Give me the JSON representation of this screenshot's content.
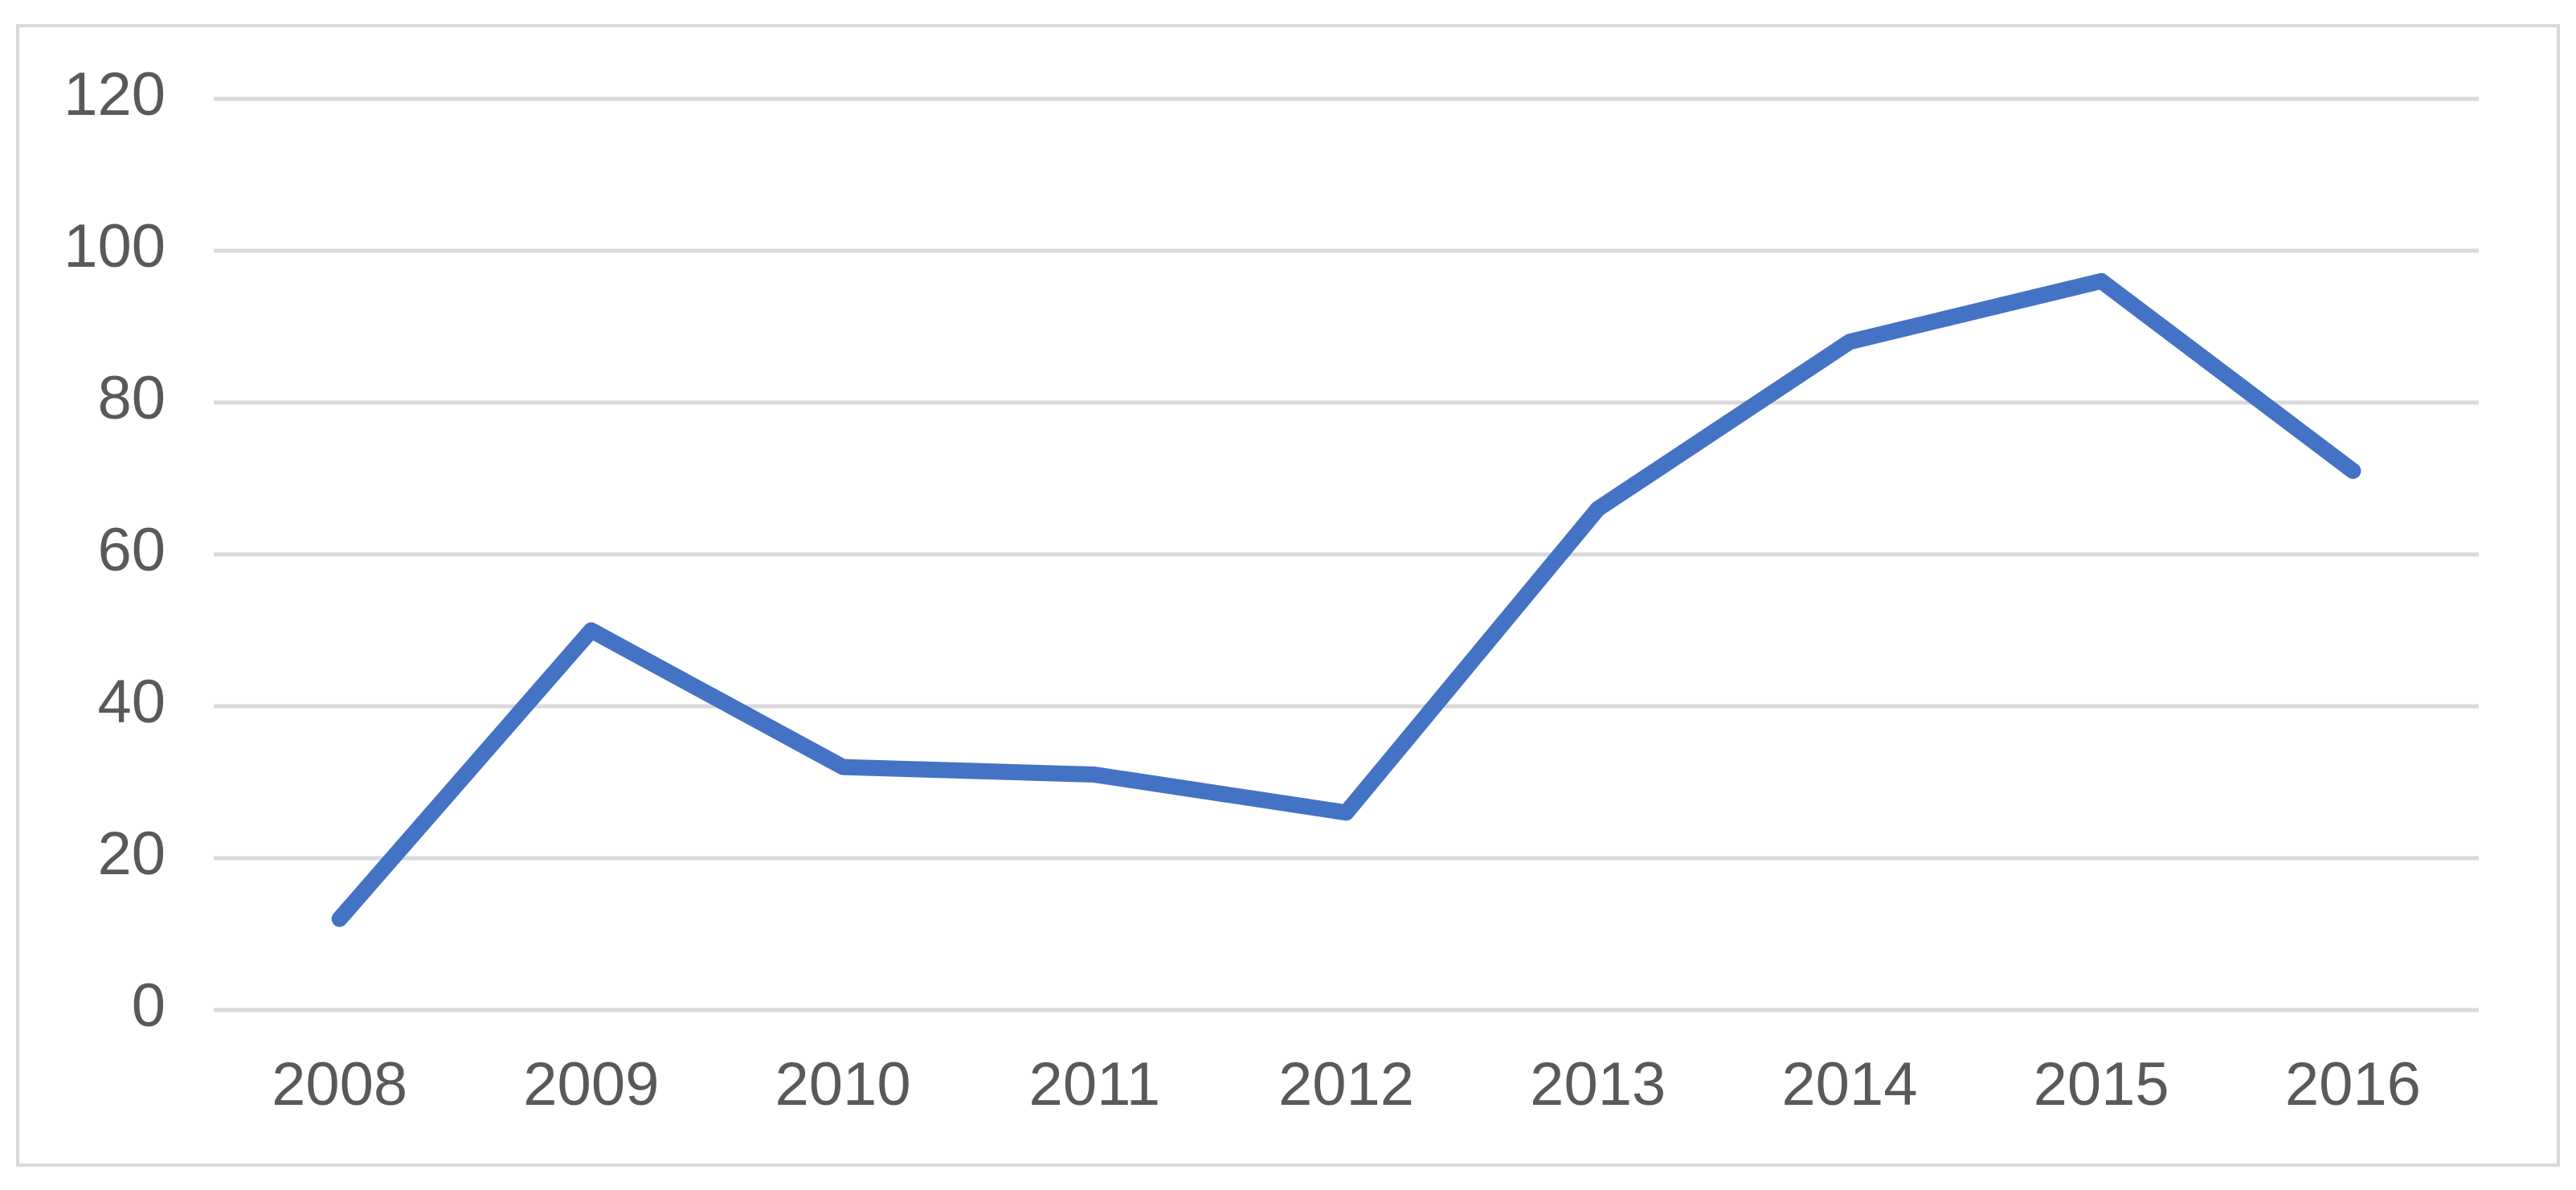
{
  "chart_data": {
    "type": "line",
    "categories": [
      "2008",
      "2009",
      "2010",
      "2011",
      "2012",
      "2013",
      "2014",
      "2015",
      "2016"
    ],
    "values": [
      12,
      50,
      32,
      31,
      26,
      66,
      88,
      96,
      71
    ],
    "color": "#4472c4",
    "ylim": [
      0,
      120
    ],
    "yticks": [
      0,
      20,
      40,
      60,
      80,
      100,
      120
    ],
    "grid": true
  }
}
